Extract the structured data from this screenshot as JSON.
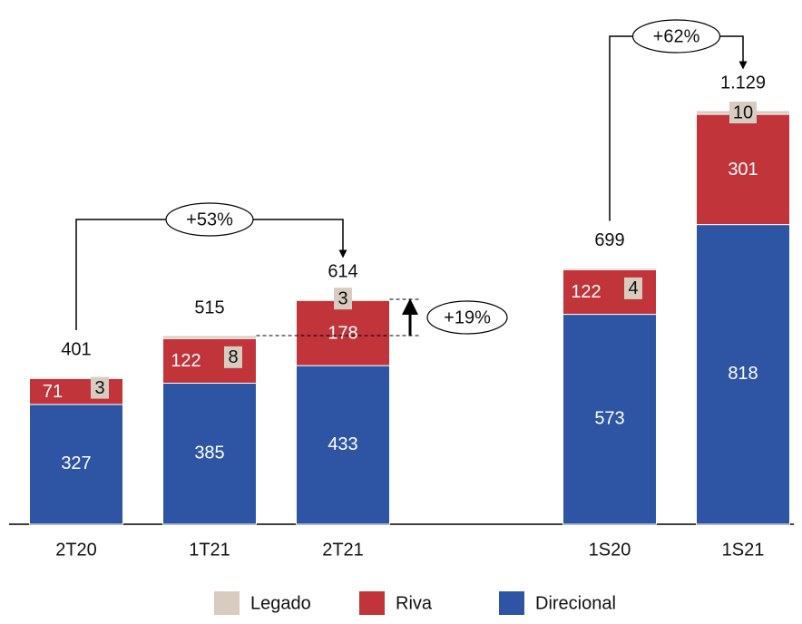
{
  "chart_data": {
    "type": "stacked-bar",
    "categories": [
      "2T20",
      "1T21",
      "2T21",
      null,
      "1S20",
      "1S21"
    ],
    "series": [
      {
        "name": "Direcional",
        "color": "#2e55a4",
        "values": [
          327,
          385,
          433,
          null,
          573,
          818
        ]
      },
      {
        "name": "Riva",
        "color": "#c0343a",
        "values": [
          71,
          122,
          178,
          null,
          122,
          301
        ]
      },
      {
        "name": "Legado",
        "color": "#d8cbbf",
        "values": [
          3,
          8,
          3,
          null,
          4,
          10
        ]
      }
    ],
    "totals": {
      "values": [
        401,
        515,
        614,
        null,
        699,
        1129
      ],
      "value_labels": [
        "401",
        "515",
        "614",
        null,
        "699",
        "1.129"
      ]
    },
    "annotations": [
      "+53%",
      "+19%",
      "+62%"
    ]
  }
}
